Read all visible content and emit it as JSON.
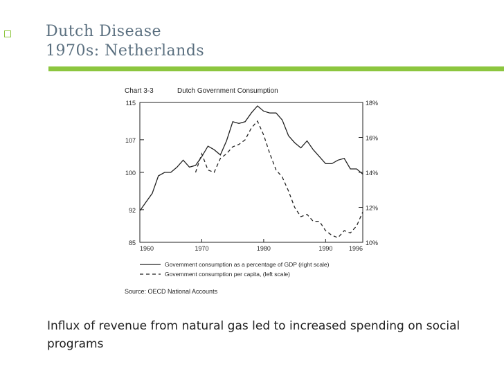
{
  "slide": {
    "title_line1": "Dutch Disease",
    "title_line2": "1970s: Netherlands",
    "caption": "Influx of revenue from natural gas led to increased spending on social programs",
    "accent": "#8cc63f"
  },
  "chart_data": {
    "type": "line",
    "chart_label": "Chart 3-3",
    "title": "Dutch Government Consumption",
    "source": "Source: OECD National Accounts",
    "xlim": [
      1960,
      1996
    ],
    "x_ticks": [
      "1960",
      "1970",
      "1980",
      "1990",
      "1996"
    ],
    "y_left": {
      "lim": [
        85,
        115
      ],
      "ticks": [
        "115",
        "107",
        "100",
        "92",
        "85"
      ]
    },
    "y_right": {
      "lim": [
        10,
        18
      ],
      "ticks": [
        "18%",
        "16%",
        "14%",
        "12%",
        "10%"
      ]
    },
    "series": [
      {
        "name": "Government consumption as a percentage of GDP (right scale)",
        "axis": "right",
        "style": "solid",
        "x": [
          1960,
          1961,
          1962,
          1963,
          1964,
          1965,
          1966,
          1967,
          1968,
          1969,
          1970,
          1971,
          1972,
          1973,
          1974,
          1975,
          1976,
          1977,
          1978,
          1979,
          1980,
          1981,
          1982,
          1983,
          1984,
          1985,
          1986,
          1987,
          1988,
          1989,
          1990,
          1991,
          1992,
          1993,
          1994,
          1995,
          1996
        ],
        "y": [
          11.8,
          12.3,
          12.8,
          13.8,
          14.0,
          14.0,
          14.3,
          14.7,
          14.3,
          14.4,
          14.9,
          15.5,
          15.3,
          15.0,
          15.8,
          16.9,
          16.8,
          16.9,
          17.4,
          17.8,
          17.5,
          17.4,
          17.4,
          17.0,
          16.1,
          15.7,
          15.4,
          15.8,
          15.3,
          14.9,
          14.5,
          14.5,
          14.7,
          14.8,
          14.2,
          14.2,
          13.9
        ]
      },
      {
        "name": "Government consumption per capita, (left scale)",
        "axis": "left",
        "style": "dashed",
        "x": [
          1969,
          1970,
          1971,
          1972,
          1973,
          1974,
          1975,
          1976,
          1977,
          1978,
          1979,
          1980,
          1981,
          1982,
          1983,
          1984,
          1985,
          1986,
          1987,
          1988,
          1989,
          1990,
          1991,
          1992,
          1993,
          1994,
          1995,
          1996
        ],
        "y": [
          100.0,
          104.0,
          100.5,
          100.0,
          103.0,
          104.0,
          105.5,
          106.0,
          107.0,
          109.5,
          111.0,
          108.0,
          104.0,
          100.5,
          99.0,
          96.0,
          92.5,
          90.5,
          91.0,
          89.5,
          89.5,
          87.5,
          86.5,
          86.0,
          87.5,
          87.0,
          88.5,
          91.5
        ]
      }
    ],
    "legend": [
      {
        "label": "Government consumption as a percentage of GDP (right scale)",
        "style": "solid"
      },
      {
        "label": "Government consumption per capita, (left scale)",
        "style": "dashed"
      }
    ],
    "grid": false
  }
}
